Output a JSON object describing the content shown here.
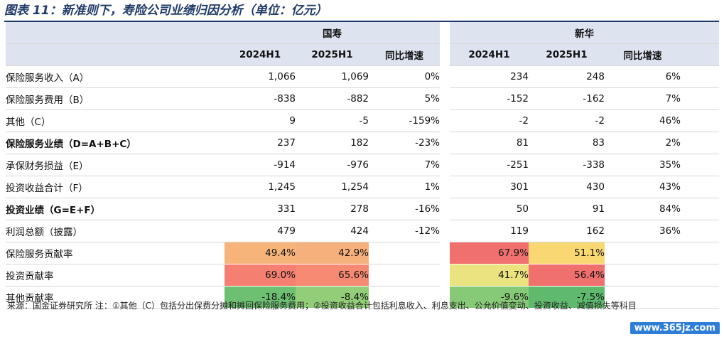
{
  "title": "图表 11：新准则下，寿险公司业绩归因分析（单位：亿元）",
  "companies": [
    "国寿",
    "新华"
  ],
  "period_headers": [
    "2024H1",
    "2025H1",
    "同比增速"
  ],
  "rows": [
    {
      "label": "保险服务收入（A）",
      "bold": false,
      "values": [
        "1,066",
        "1,069",
        "0%",
        "234",
        "248",
        "6%"
      ]
    },
    {
      "label": "保险服务费用（B）",
      "bold": false,
      "values": [
        "-838",
        "-882",
        "5%",
        "-152",
        "-162",
        "7%"
      ]
    },
    {
      "label": "其他（C）",
      "bold": false,
      "values": [
        "9",
        "-5",
        "-159%",
        "-2",
        "-2",
        "46%"
      ]
    },
    {
      "label": "保险服务业绩（D=A+B+C）",
      "bold": true,
      "values": [
        "237",
        "182",
        "-23%",
        "81",
        "83",
        "2%"
      ]
    },
    {
      "label": "承保财务损益（E）",
      "bold": false,
      "values": [
        "-914",
        "-976",
        "7%",
        "-251",
        "-338",
        "35%"
      ]
    },
    {
      "label": "投资收益合计（F）",
      "bold": false,
      "values": [
        "1,245",
        "1,254",
        "1%",
        "301",
        "430",
        "43%"
      ]
    },
    {
      "label": "投资业绩（G=E+F）",
      "bold": true,
      "values": [
        "331",
        "278",
        "-16%",
        "50",
        "91",
        "84%"
      ]
    },
    {
      "label": "利润总额（披露）",
      "bold": false,
      "values": [
        "479",
        "424",
        "-12%",
        "119",
        "162",
        "36%"
      ]
    }
  ],
  "contribution_rows": [
    {
      "label": "保险服务贡献率",
      "values": [
        "49.4%",
        "42.9%",
        "",
        "67.9%",
        "51.1%",
        ""
      ],
      "colors": [
        "#f7b47a",
        "#f6b07c",
        "",
        "#f0706e",
        "#f9d873",
        ""
      ]
    },
    {
      "label": "投资贡献率",
      "values": [
        "69.0%",
        "65.6%",
        "",
        "41.7%",
        "56.4%",
        ""
      ],
      "colors": [
        "#f57f71",
        "#f68a72",
        "",
        "#ebe37f",
        "#f0706e",
        ""
      ]
    },
    {
      "label": "其他贡献率",
      "values": [
        "-18.4%",
        "-8.4%",
        "",
        "-9.6%",
        "-7.5%",
        ""
      ],
      "colors": [
        "#6dbf71",
        "#92cd78",
        "",
        "#86c976",
        "#5fba6e",
        ""
      ]
    }
  ],
  "source_text": "来源：国金证券研究所  注：①其他（C）包括分出保费分摊和摊回保险服务费用；②投资收益合计包括利息收入、利息支出、公允价值变动、投资收益、减值损失等科目",
  "watermark": "www.365jz.com"
}
